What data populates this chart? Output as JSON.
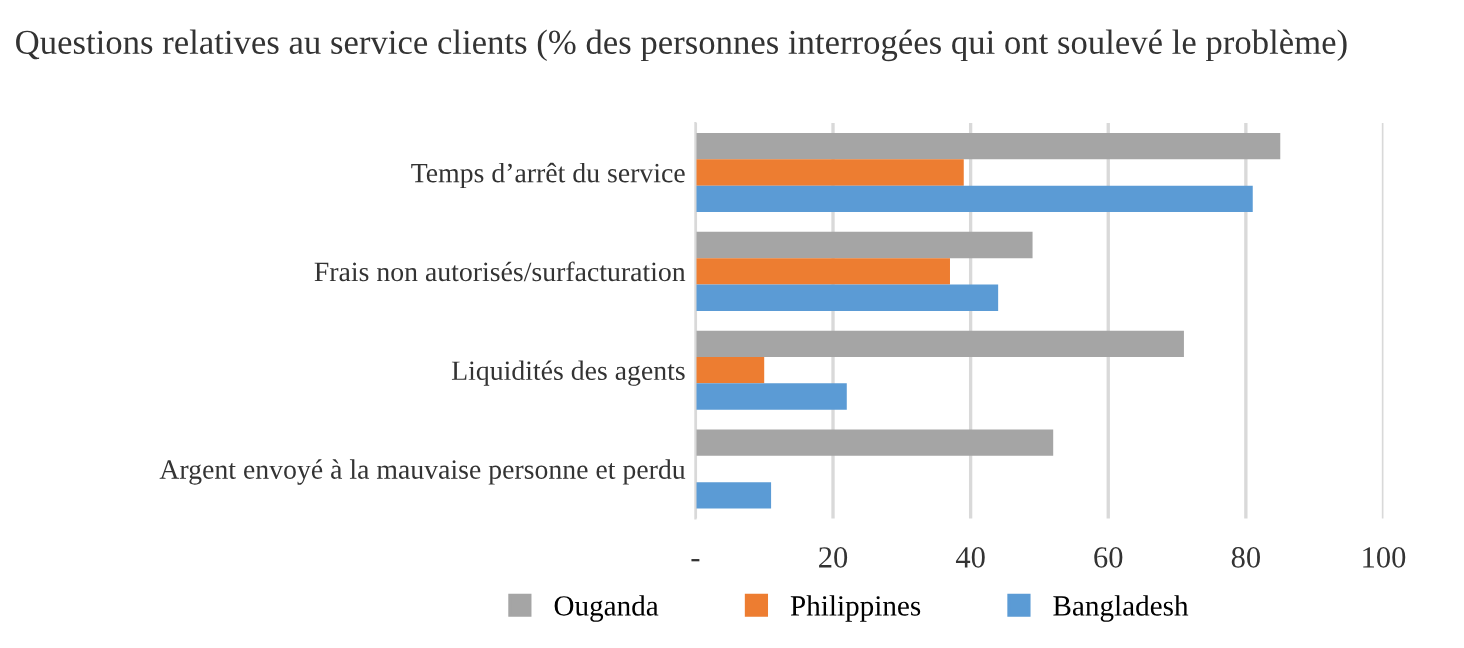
{
  "chart_data": {
    "type": "bar",
    "orientation": "horizontal",
    "title": "Questions relatives au service clients (% des personnes interrogées qui ont soulevé le problème)",
    "categories": [
      "Temps d’arrêt du service",
      "Frais non autorisés/surfacturation",
      "Liquidités des agents",
      "Argent envoyé à la mauvaise personne et perdu"
    ],
    "series": [
      {
        "name": "Ouganda",
        "color": "#a5a5a5",
        "values": [
          85,
          49,
          71,
          52
        ]
      },
      {
        "name": "Philippines",
        "color": "#ed7d31",
        "values": [
          39,
          37,
          10,
          null
        ]
      },
      {
        "name": "Bangladesh",
        "color": "#5b9bd5",
        "values": [
          81,
          44,
          22,
          11
        ]
      }
    ],
    "xlim": [
      0,
      100
    ],
    "xticks": [
      {
        "value": 0,
        "label": "-"
      },
      20,
      40,
      60,
      80,
      100
    ],
    "grid": "x",
    "legend": "bottom"
  }
}
